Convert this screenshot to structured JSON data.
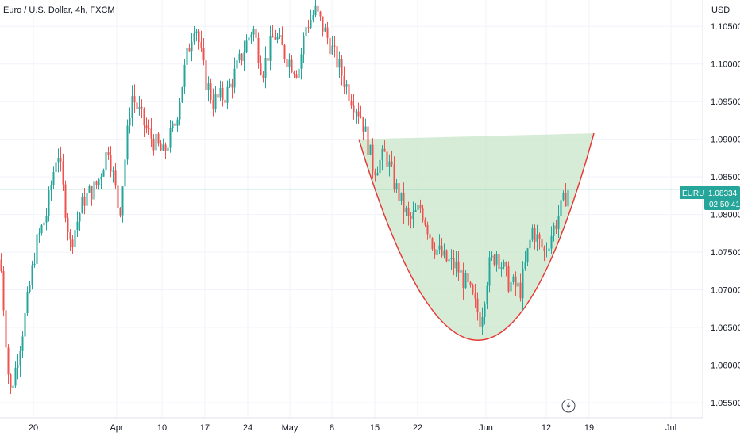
{
  "header": {
    "title": "Euro / U.S. Dollar, 4h, FXCM",
    "currency": "USD"
  },
  "price_badge": {
    "symbol": "EURUSD",
    "price": "1.08334",
    "countdown": "02:50:41",
    "color": "#26a69a"
  },
  "colors": {
    "up": "#26a69a",
    "down": "#ef5350",
    "grid": "#f0f3fa",
    "pattern_fill": "#c8e6c9",
    "pattern_stroke": "#e53935",
    "price_line": "#26a69a"
  },
  "overlay": {
    "pattern": "cup",
    "icon": "lightning-icon"
  },
  "chart_data": {
    "type": "candlestick",
    "instrument": "EURUSD",
    "timeframe": "4h",
    "ylim": [
      1.053,
      1.1085
    ],
    "y_ticks": [
      "1.10500",
      "1.10000",
      "1.09500",
      "1.09000",
      "1.08500",
      "1.08000",
      "1.07500",
      "1.07000",
      "1.06500",
      "1.06000",
      "1.05500"
    ],
    "x_ticks": [
      "20",
      "Apr",
      "10",
      "17",
      "24",
      "May",
      "8",
      "15",
      "22",
      "Jun",
      "12",
      "19",
      "Jul"
    ],
    "anchors": [
      [
        0,
        1.074
      ],
      [
        12,
        1.056
      ],
      [
        20,
        1.06
      ],
      [
        32,
        1.067
      ],
      [
        45,
        1.076
      ],
      [
        58,
        1.08
      ],
      [
        72,
        1.089
      ],
      [
        88,
        1.076
      ],
      [
        105,
        1.082
      ],
      [
        122,
        1.084
      ],
      [
        136,
        1.089
      ],
      [
        150,
        1.08
      ],
      [
        165,
        1.096
      ],
      [
        185,
        1.091
      ],
      [
        205,
        1.088
      ],
      [
        220,
        1.092
      ],
      [
        235,
        1.101
      ],
      [
        245,
        1.106
      ],
      [
        258,
        1.098
      ],
      [
        268,
        1.095
      ],
      [
        285,
        1.096
      ],
      [
        300,
        1.1
      ],
      [
        318,
        1.105
      ],
      [
        330,
        1.099
      ],
      [
        345,
        1.104
      ],
      [
        360,
        1.101
      ],
      [
        375,
        1.099
      ],
      [
        385,
        1.105
      ],
      [
        397,
        1.107
      ],
      [
        410,
        1.104
      ],
      [
        425,
        1.1
      ],
      [
        440,
        1.096
      ],
      [
        455,
        1.093
      ],
      [
        470,
        1.086
      ],
      [
        485,
        1.088
      ],
      [
        500,
        1.083
      ],
      [
        515,
        1.079
      ],
      [
        530,
        1.081
      ],
      [
        545,
        1.076
      ],
      [
        560,
        1.074
      ],
      [
        575,
        1.073
      ],
      [
        590,
        1.07
      ],
      [
        605,
        1.066
      ],
      [
        615,
        1.073
      ],
      [
        625,
        1.075
      ],
      [
        640,
        1.071
      ],
      [
        655,
        1.07
      ],
      [
        670,
        1.078
      ],
      [
        685,
        1.075
      ],
      [
        700,
        1.079
      ],
      [
        715,
        1.0833
      ]
    ],
    "last_price": 1.08334,
    "cup": {
      "left": [
        452,
        1.09
      ],
      "right": [
        748,
        1.0908
      ],
      "bottom": [
        603,
        1.0633
      ]
    }
  }
}
